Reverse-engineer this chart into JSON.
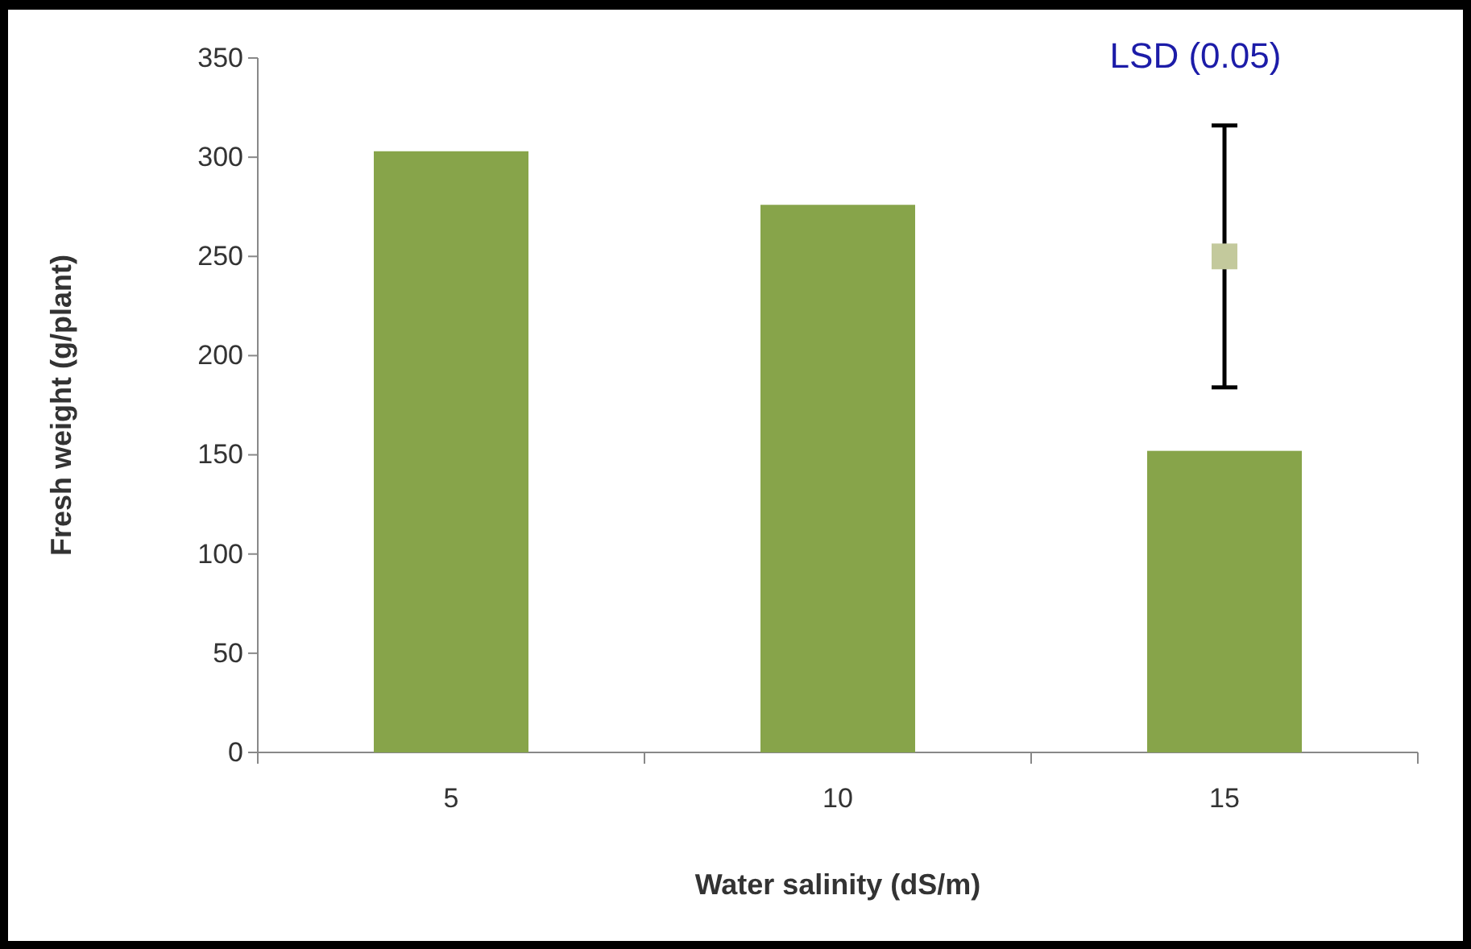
{
  "chart_data": {
    "type": "bar",
    "xlabel": "Water salinity (dS/m)",
    "ylabel": "Fresh weight (g/plant)",
    "categories": [
      "5",
      "10",
      "15"
    ],
    "series": [
      {
        "color": "#87a44a",
        "values": [
          303,
          276,
          152
        ]
      },
      {
        "type": "scatter",
        "color": "#c3c99c",
        "x": [
          "15"
        ],
        "values": [
          250
        ],
        "errors": [
          66
        ]
      }
    ],
    "ylim": [
      0,
      350
    ],
    "yticks": [
      0,
      50,
      100,
      150,
      200,
      250,
      300,
      350
    ],
    "marker": "square",
    "annotations": [
      "LSD (0.05)"
    ]
  }
}
